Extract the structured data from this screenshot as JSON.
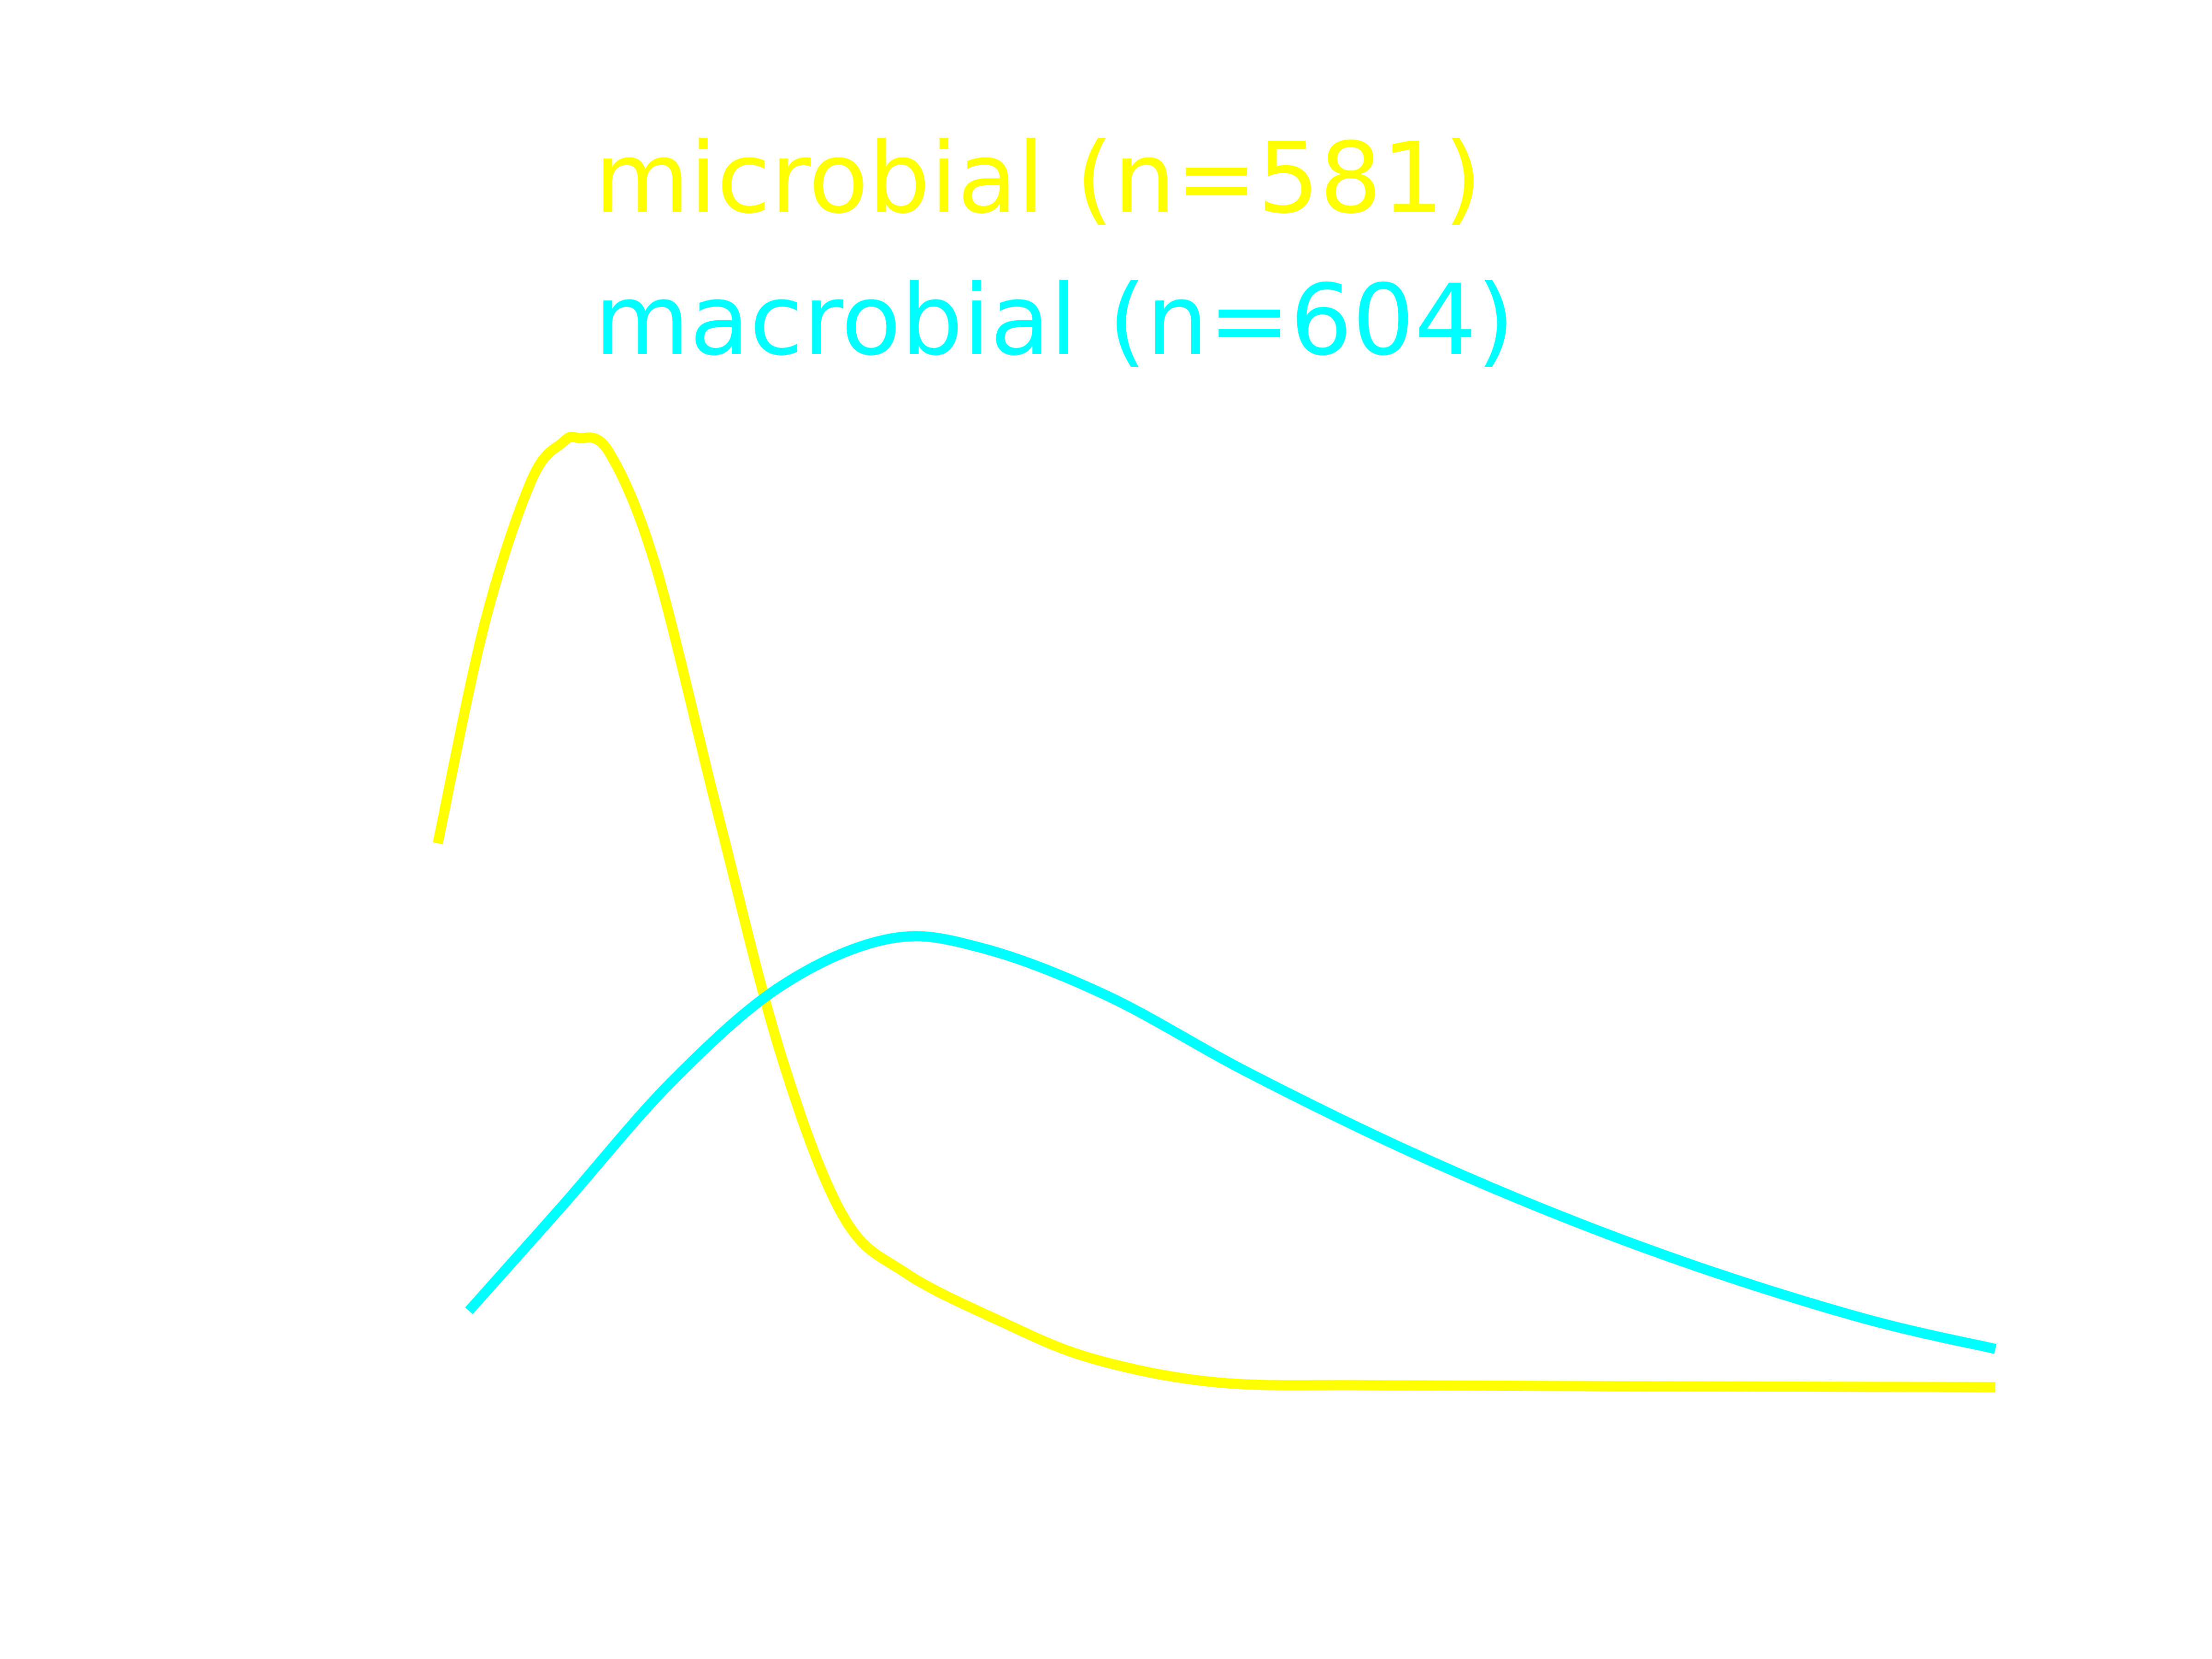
{
  "chart_data": {
    "type": "line",
    "title": "",
    "xlabel": "",
    "ylabel": "",
    "xlim": [
      0,
      1
    ],
    "ylim": [
      0,
      1
    ],
    "grid": false,
    "legend_position": "top",
    "series": [
      {
        "name": "microbial (n=581)",
        "color": "#ffff00",
        "x": [
          0.0,
          0.03,
          0.06,
          0.08,
          0.09,
          0.11,
          0.14,
          0.18,
          0.22,
          0.26,
          0.3,
          0.36,
          0.42,
          0.5,
          0.6,
          0.75,
          1.0
        ],
        "y": [
          0.57,
          0.8,
          0.95,
          0.99,
          0.995,
          0.98,
          0.86,
          0.6,
          0.35,
          0.18,
          0.12,
          0.07,
          0.03,
          0.005,
          0.002,
          0.001,
          0.0
        ]
      },
      {
        "name": "macrobial (n=604)",
        "color": "#00ffff",
        "x": [
          0.02,
          0.08,
          0.15,
          0.22,
          0.29,
          0.35,
          0.43,
          0.52,
          0.62,
          0.72,
          0.82,
          0.92,
          1.0
        ],
        "y": [
          0.08,
          0.19,
          0.32,
          0.42,
          0.47,
          0.46,
          0.41,
          0.33,
          0.25,
          0.18,
          0.12,
          0.07,
          0.04
        ]
      }
    ]
  }
}
